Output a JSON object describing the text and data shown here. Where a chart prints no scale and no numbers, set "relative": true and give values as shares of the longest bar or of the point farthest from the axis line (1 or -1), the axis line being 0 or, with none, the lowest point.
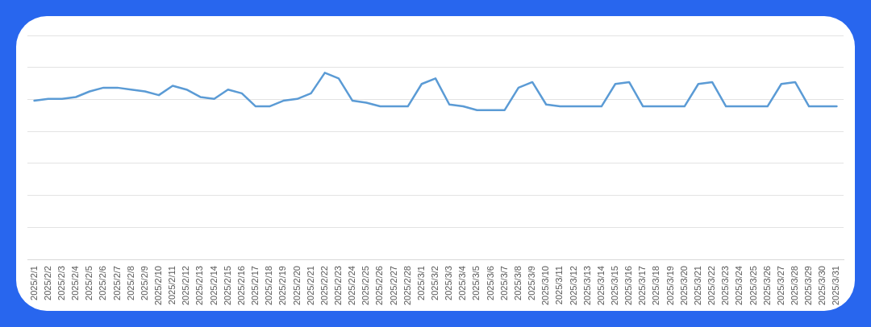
{
  "chart_data": {
    "type": "line",
    "relative": true,
    "grid": "y",
    "legend": false,
    "marker": "none",
    "line_style": "solid",
    "categories": [
      "2025/2/1",
      "2025/2/2",
      "2025/2/3",
      "2025/2/4",
      "2025/2/5",
      "2025/2/6",
      "2025/2/7",
      "2025/2/8",
      "2025/2/9",
      "2025/2/10",
      "2025/2/11",
      "2025/2/12",
      "2025/2/13",
      "2025/2/14",
      "2025/2/15",
      "2025/2/16",
      "2025/2/17",
      "2025/2/18",
      "2025/2/19",
      "2025/2/20",
      "2025/2/21",
      "2025/2/22",
      "2025/2/23",
      "2025/2/24",
      "2025/2/25",
      "2025/2/26",
      "2025/2/27",
      "2025/2/28",
      "2025/3/1",
      "2025/3/2",
      "2025/3/3",
      "2025/3/4",
      "2025/3/5",
      "2025/3/6",
      "2025/3/7",
      "2025/3/8",
      "2025/3/9",
      "2025/3/10",
      "2025/3/11",
      "2025/3/12",
      "2025/3/13",
      "2025/3/14",
      "2025/3/15",
      "2025/3/16",
      "2025/3/17",
      "2025/3/18",
      "2025/3/19",
      "2025/3/20",
      "2025/3/21",
      "2025/3/22",
      "2025/3/23",
      "2025/3/24",
      "2025/3/25",
      "2025/3/26",
      "2025/3/27",
      "2025/3/28",
      "2025/3/29",
      "2025/3/30",
      "2025/3/31"
    ],
    "series": [
      {
        "color": "#5b9bd5",
        "values": [
          0.85,
          0.86,
          0.86,
          0.87,
          0.9,
          0.92,
          0.92,
          0.91,
          0.9,
          0.88,
          0.93,
          0.91,
          0.87,
          0.86,
          0.91,
          0.89,
          0.82,
          0.82,
          0.85,
          0.86,
          0.89,
          1,
          0.97,
          0.85,
          0.84,
          0.82,
          0.82,
          0.82,
          0.94,
          0.97,
          0.83,
          0.82,
          0.8,
          0.8,
          0.8,
          0.92,
          0.95,
          0.83,
          0.82,
          0.82,
          0.82,
          0.82,
          0.94,
          0.95,
          0.82,
          0.82,
          0.82,
          0.82,
          0.94,
          0.95,
          0.82,
          0.82,
          0.82,
          0.82,
          0.94,
          0.95,
          0.82,
          0.82,
          0.82
        ]
      }
    ]
  }
}
